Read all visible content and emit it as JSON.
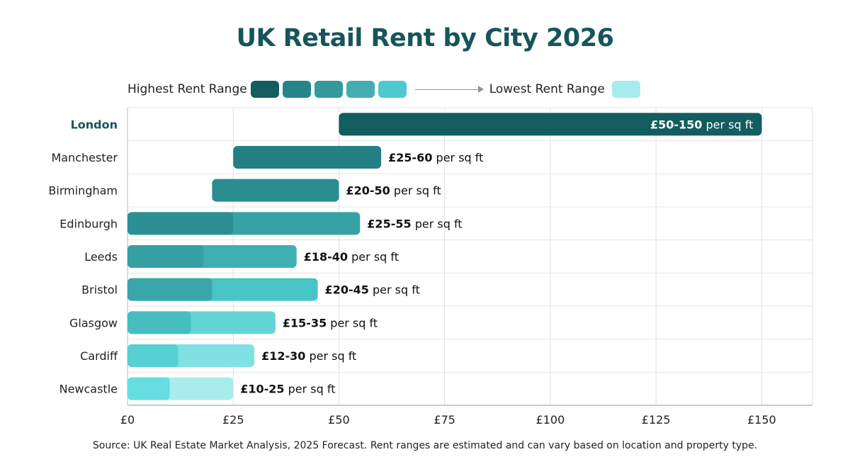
{
  "chart_data": {
    "type": "bar",
    "orientation": "horizontal",
    "title": "UK Retail Rent by City 2026",
    "categories": [
      "London",
      "Manchester",
      "Birmingham",
      "Edinburgh",
      "Leeds",
      "Bristol",
      "Glasgow",
      "Cardiff",
      "Newcastle"
    ],
    "ranges": [
      {
        "city": "London",
        "low": 50,
        "high": 150,
        "label_bold": "£50-150",
        "label_rest": " per sq ft",
        "color": "#135c60",
        "segment_color": null,
        "starts_at_zero": false
      },
      {
        "city": "Manchester",
        "low": 25,
        "high": 60,
        "label_bold": "£25-60",
        "label_rest": " per sq ft",
        "color": "#237f84",
        "segment_color": null,
        "starts_at_zero": false
      },
      {
        "city": "Birmingham",
        "low": 20,
        "high": 50,
        "label_bold": "£20-50",
        "label_rest": " per sq ft",
        "color": "#2a8d90",
        "segment_color": null,
        "starts_at_zero": false
      },
      {
        "city": "Edinburgh",
        "low": 25,
        "high": 55,
        "label_bold": "£25-55",
        "label_rest": " per sq ft",
        "color": "#36a2a6",
        "segment_color": "#2c8f93",
        "starts_at_zero": true
      },
      {
        "city": "Leeds",
        "low": 18,
        "high": 40,
        "label_bold": "£18-40",
        "label_rest": " per sq ft",
        "color": "#3eb0b3",
        "segment_color": "#34a0a4",
        "starts_at_zero": true
      },
      {
        "city": "Bristol",
        "low": 20,
        "high": 45,
        "label_bold": "£20-45",
        "label_rest": " per sq ft",
        "color": "#48c3c6",
        "segment_color": "#3aa6aa",
        "starts_at_zero": true
      },
      {
        "city": "Glasgow",
        "low": 15,
        "high": 35,
        "label_bold": "£15-35",
        "label_rest": " per sq ft",
        "color": "#64d5d7",
        "segment_color": "#47bdc1",
        "starts_at_zero": true
      },
      {
        "city": "Cardiff",
        "low": 12,
        "high": 30,
        "label_bold": "£12-30",
        "label_rest": " per sq ft",
        "color": "#80e1e3",
        "segment_color": "#55d0d3",
        "starts_at_zero": true
      },
      {
        "city": "Newcastle",
        "low": 10,
        "high": 25,
        "label_bold": "£10-25",
        "label_rest": " per sq ft",
        "color": "#a9ecee",
        "segment_color": "#66dde0",
        "starts_at_zero": true
      }
    ],
    "highlighted_category": "London",
    "highlight_color": "#17555a",
    "xlim": [
      0,
      162
    ],
    "xticks": [
      0,
      25,
      50,
      75,
      100,
      125,
      150
    ],
    "xtick_labels": [
      "£0",
      "£25",
      "£50",
      "£75",
      "£100",
      "£125",
      "£150"
    ],
    "grid": true,
    "legend": {
      "placement": "top",
      "high_label": "Highest Rent Range",
      "low_label": "Lowest Rent Range",
      "gradient_colors": [
        "#135c60",
        "#268589",
        "#33999d",
        "#45adb1",
        "#4ec9cd"
      ],
      "low_color": "#a6ecee"
    },
    "source": "Source: UK Real Estate Market Analysis, 2025 Forecast. Rent ranges are estimated and can vary based on location and property type."
  }
}
